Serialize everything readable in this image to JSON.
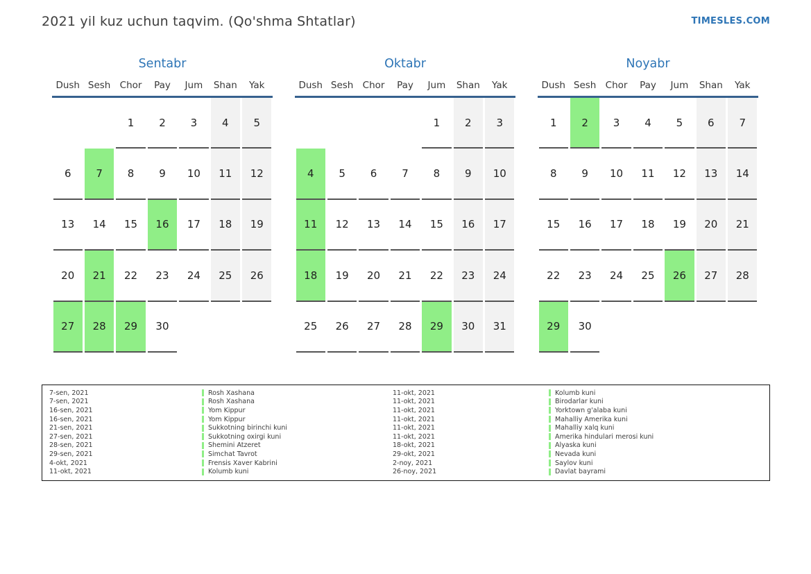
{
  "header": {
    "title": "2021 yil kuz uchun taqvim. (Qo'shma Shtatlar)",
    "site": "TIMESLES.COM"
  },
  "weekdays": [
    "Dush",
    "Sesh",
    "Chor",
    "Pay",
    "Jum",
    "Shan",
    "Yak"
  ],
  "months": [
    {
      "name": "Sentabr",
      "weeks": [
        [
          null,
          null,
          1,
          2,
          3,
          4,
          5
        ],
        [
          6,
          7,
          8,
          9,
          10,
          11,
          12
        ],
        [
          13,
          14,
          15,
          16,
          17,
          18,
          19
        ],
        [
          20,
          21,
          22,
          23,
          24,
          25,
          26
        ],
        [
          27,
          28,
          29,
          30,
          null,
          null,
          null
        ]
      ],
      "highlighted": [
        7,
        16,
        21,
        27,
        28,
        29
      ]
    },
    {
      "name": "Oktabr",
      "weeks": [
        [
          null,
          null,
          null,
          null,
          1,
          2,
          3
        ],
        [
          4,
          5,
          6,
          7,
          8,
          9,
          10
        ],
        [
          11,
          12,
          13,
          14,
          15,
          16,
          17
        ],
        [
          18,
          19,
          20,
          21,
          22,
          23,
          24
        ],
        [
          25,
          26,
          27,
          28,
          29,
          30,
          31
        ]
      ],
      "highlighted": [
        4,
        11,
        18,
        29
      ]
    },
    {
      "name": "Noyabr",
      "weeks": [
        [
          1,
          2,
          3,
          4,
          5,
          6,
          7
        ],
        [
          8,
          9,
          10,
          11,
          12,
          13,
          14
        ],
        [
          15,
          16,
          17,
          18,
          19,
          20,
          21
        ],
        [
          22,
          23,
          24,
          25,
          26,
          27,
          28
        ],
        [
          29,
          30,
          null,
          null,
          null,
          null,
          null
        ]
      ],
      "highlighted": [
        2,
        26,
        29
      ]
    }
  ],
  "legend": {
    "left": [
      {
        "date": "7-sen, 2021",
        "name": "Rosh Xashana"
      },
      {
        "date": "7-sen, 2021",
        "name": "Rosh Xashana"
      },
      {
        "date": "16-sen, 2021",
        "name": "Yom Kippur"
      },
      {
        "date": "16-sen, 2021",
        "name": "Yom Kippur"
      },
      {
        "date": "21-sen, 2021",
        "name": "Sukkotning birinchi kuni"
      },
      {
        "date": "27-sen, 2021",
        "name": "Sukkotning oxirgi kuni"
      },
      {
        "date": "28-sen, 2021",
        "name": "Shemini Atzeret"
      },
      {
        "date": "29-sen, 2021",
        "name": "Simchat Tavrot"
      },
      {
        "date": "4-okt, 2021",
        "name": "Frensis Xaver Kabrini"
      },
      {
        "date": "11-okt, 2021",
        "name": "Kolumb kuni"
      }
    ],
    "right": [
      {
        "date": "11-okt, 2021",
        "name": "Kolumb kuni"
      },
      {
        "date": "11-okt, 2021",
        "name": "Birodarlar kuni"
      },
      {
        "date": "11-okt, 2021",
        "name": "Yorktown g'alaba kuni"
      },
      {
        "date": "11-okt, 2021",
        "name": "Mahalliy Amerika kuni"
      },
      {
        "date": "11-okt, 2021",
        "name": "Mahalliy xalq kuni"
      },
      {
        "date": "11-okt, 2021",
        "name": "Amerika hindulari merosi kuni"
      },
      {
        "date": "18-okt, 2021",
        "name": "Alyaska kuni"
      },
      {
        "date": "29-okt, 2021",
        "name": "Nevada kuni"
      },
      {
        "date": "2-noy, 2021",
        "name": "Saylov kuni"
      },
      {
        "date": "26-noy, 2021",
        "name": "Davlat bayrami"
      }
    ]
  },
  "colors": {
    "highlight_green": "#90ee87",
    "weekend_bg": "#f2f2f2",
    "accent_blue": "#2e75b6",
    "header_line_blue": "#36618e",
    "cell_border": "#545454"
  }
}
